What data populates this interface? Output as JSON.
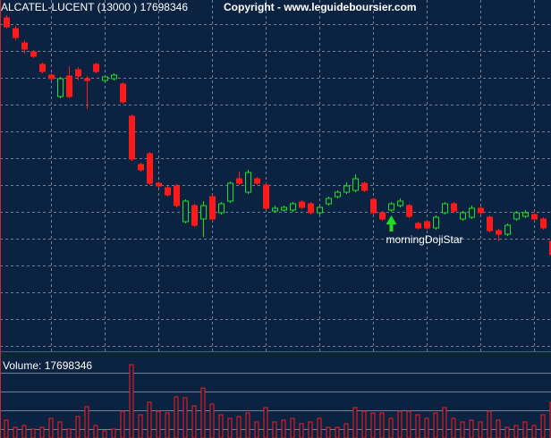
{
  "chart_data": [
    {
      "type": "candlestick",
      "title": "ALCATEL-LUCENT (13000 ) 17698346",
      "subtitle": "Copyright - www.leguideboursier.com",
      "categories": [
        null,
        null,
        null,
        null,
        null,
        null,
        null,
        null,
        null,
        null,
        null,
        null,
        null,
        null,
        null,
        null,
        null,
        null,
        null,
        null,
        null,
        null,
        null,
        null,
        null,
        null,
        null,
        null,
        null,
        null,
        null,
        null,
        null,
        null,
        null,
        null,
        null,
        null,
        null,
        null,
        null,
        null,
        null,
        null,
        null,
        null,
        null,
        null,
        null,
        null,
        null,
        null,
        null,
        null,
        null,
        null,
        null,
        null,
        null,
        null,
        null,
        null
      ],
      "open": [
        380,
        368,
        352,
        342,
        328,
        316,
        292,
        315,
        322,
        312,
        328,
        310,
        312,
        306,
        270,
        216,
        228,
        195,
        190,
        192,
        152,
        170,
        155,
        180,
        162,
        175,
        200,
        185,
        200,
        193,
        164,
        165,
        165,
        174,
        172,
        162,
        172,
        180,
        185,
        187,
        195,
        177,
        162,
        165,
        170,
        170,
        150,
        152,
        145,
        162,
        172,
        155,
        157,
        167,
        157,
        142,
        138,
        155,
        158,
        160,
        155,
        130
      ],
      "high": [
        383,
        371,
        355,
        344,
        330,
        318,
        314,
        326,
        325,
        315,
        330,
        316,
        318,
        308,
        272,
        218,
        230,
        197,
        192,
        194,
        177,
        172,
        175,
        182,
        174,
        197,
        208,
        210,
        202,
        195,
        170,
        170,
        174,
        176,
        174,
        170,
        180,
        187,
        196,
        205,
        197,
        179,
        164,
        174,
        178,
        172,
        152,
        154,
        159,
        174,
        174,
        164,
        170,
        170,
        159,
        144,
        150,
        164,
        165,
        162,
        157,
        132
      ],
      "low": [
        368,
        355,
        340,
        335,
        318,
        310,
        290,
        290,
        310,
        278,
        318,
        308,
        310,
        284,
        220,
        208,
        193,
        190,
        180,
        168,
        150,
        146,
        135,
        153,
        160,
        173,
        193,
        183,
        193,
        165,
        162,
        163,
        163,
        166,
        160,
        160,
        170,
        178,
        183,
        185,
        185,
        160,
        153,
        163,
        168,
        156,
        143,
        143,
        143,
        160,
        162,
        153,
        155,
        160,
        140,
        130,
        136,
        153,
        156,
        153,
        143,
        113
      ],
      "close": [
        370,
        358,
        345,
        337,
        320,
        312,
        312,
        292,
        315,
        310,
        320,
        314,
        316,
        286,
        222,
        210,
        195,
        192,
        182,
        170,
        175,
        148,
        170,
        155,
        172,
        195,
        195,
        207,
        195,
        167,
        167,
        168,
        172,
        168,
        162,
        168,
        178,
        185,
        192,
        200,
        187,
        162,
        155,
        172,
        175,
        158,
        145,
        145,
        157,
        172,
        164,
        162,
        167,
        162,
        142,
        138,
        148,
        162,
        162,
        155,
        145,
        115
      ],
      "up_color": "#22dd22",
      "down_color": "#ff1a1a",
      "ylim": [
        7,
        400
      ],
      "grid": true,
      "annotations": [
        {
          "text": "morningDojiStar",
          "index": 43,
          "color": "#22dd22"
        }
      ]
    },
    {
      "type": "bar",
      "title": "Volume: 17698346",
      "color": "#ff1a1a",
      "values": [
        20,
        12,
        14,
        10,
        12,
        22,
        18,
        10,
        24,
        35,
        14,
        8,
        10,
        30,
        82,
        26,
        40,
        30,
        28,
        46,
        45,
        36,
        56,
        38,
        26,
        22,
        24,
        28,
        18,
        34,
        18,
        20,
        22,
        16,
        18,
        22,
        12,
        12,
        16,
        34,
        30,
        28,
        28,
        22,
        30,
        30,
        26,
        22,
        28,
        34,
        22,
        18,
        20,
        18,
        30,
        20,
        12,
        14,
        18,
        14,
        26,
        40
      ],
      "ylim": [
        0,
        95
      ],
      "grid": true
    }
  ]
}
